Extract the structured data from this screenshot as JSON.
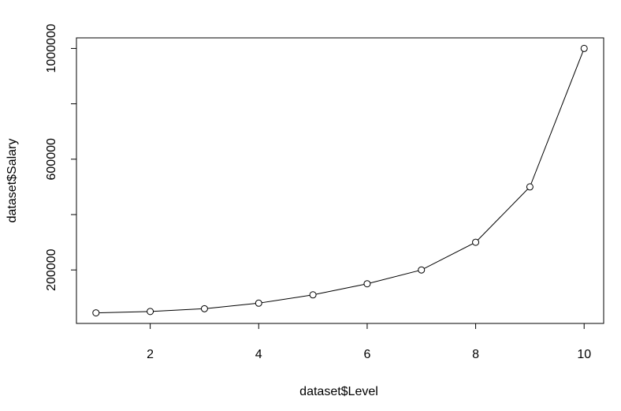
{
  "chart_data": {
    "type": "line",
    "xlabel": "dataset$Level",
    "ylabel": "dataset$Salary",
    "x": [
      1,
      2,
      3,
      4,
      5,
      6,
      7,
      8,
      9,
      10
    ],
    "series": [
      {
        "color": "#000000",
        "values": [
          45000,
          50000,
          60000,
          80000,
          110000,
          150000,
          200000,
          300000,
          500000,
          1000000
        ]
      }
    ],
    "xlim": [
      0.64,
      10.36
    ],
    "ylim": [
      6800,
      1038200
    ],
    "xticks": [
      2,
      4,
      6,
      8,
      10
    ],
    "yticks": [
      200000,
      600000,
      1000000
    ],
    "y_unlabeled_ticks": [
      400000,
      800000
    ],
    "markers": "open-circle"
  }
}
